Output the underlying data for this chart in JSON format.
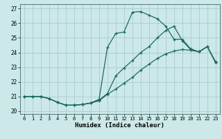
{
  "xlabel": "Humidex (Indice chaleur)",
  "bg_color": "#cce8e8",
  "grid_color": "#aacccc",
  "line_color": "#1a6b5a",
  "xlim": [
    -0.5,
    23.5
  ],
  "ylim": [
    19.8,
    27.3
  ],
  "xticks": [
    0,
    1,
    2,
    3,
    4,
    5,
    6,
    7,
    8,
    9,
    10,
    11,
    12,
    13,
    14,
    15,
    16,
    17,
    18,
    19,
    20,
    21,
    22,
    23
  ],
  "yticks": [
    20,
    21,
    22,
    23,
    24,
    25,
    26,
    27
  ],
  "line1_y": [
    21.0,
    21.0,
    21.0,
    20.85,
    20.6,
    20.4,
    20.4,
    20.45,
    20.55,
    20.7,
    21.15,
    21.5,
    21.9,
    22.3,
    22.8,
    23.2,
    23.6,
    23.9,
    24.1,
    24.2,
    24.15,
    24.05,
    24.4,
    23.3
  ],
  "line2_y": [
    21.0,
    21.0,
    21.0,
    20.85,
    20.6,
    20.4,
    20.4,
    20.45,
    20.55,
    20.8,
    24.35,
    25.3,
    25.4,
    26.75,
    26.8,
    26.55,
    26.3,
    25.8,
    24.9,
    24.9,
    24.25,
    24.05,
    24.4,
    23.35
  ],
  "line3_y": [
    21.0,
    21.0,
    21.0,
    20.85,
    20.6,
    20.4,
    20.4,
    20.45,
    20.55,
    20.75,
    21.2,
    22.4,
    22.95,
    23.45,
    24.0,
    24.4,
    25.0,
    25.5,
    25.8,
    24.8,
    24.2,
    24.05,
    24.4,
    23.35
  ]
}
